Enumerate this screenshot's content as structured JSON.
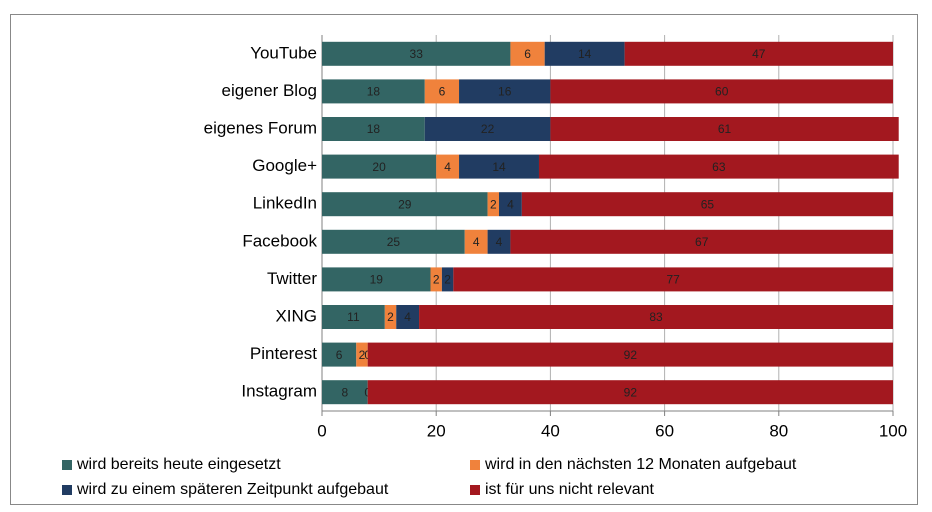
{
  "chart_data": {
    "type": "stacked-bar-horizontal",
    "categories": [
      "YouTube",
      "eigener Blog",
      "eigenes Forum",
      "Google+",
      "LinkedIn",
      "Facebook",
      "Twitter",
      "XING",
      "Pinterest",
      "Instagram"
    ],
    "series": [
      {
        "name": "wird bereits heute eingesetzt",
        "color": "#336564",
        "values": [
          33,
          18,
          18,
          20,
          29,
          25,
          19,
          11,
          6,
          8
        ]
      },
      {
        "name": "wird in den nächsten 12 Monaten aufgebaut",
        "color": "#f0823c",
        "values": [
          6,
          6,
          null,
          4,
          2,
          4,
          2,
          2,
          2,
          0
        ]
      },
      {
        "name": "wird zu einem späteren Zeitpunkt aufgebaut",
        "color": "#213c62",
        "values": [
          14,
          16,
          22,
          14,
          4,
          4,
          2,
          4,
          0,
          null
        ]
      },
      {
        "name": "ist für uns nicht relevant",
        "color": "#a3181f",
        "values": [
          47,
          60,
          61,
          63,
          65,
          67,
          77,
          83,
          92,
          92
        ]
      }
    ],
    "xlim": [
      0,
      100
    ],
    "xticks": [
      0,
      20,
      40,
      60,
      80,
      100
    ],
    "grid": true,
    "legend": "bottom"
  }
}
